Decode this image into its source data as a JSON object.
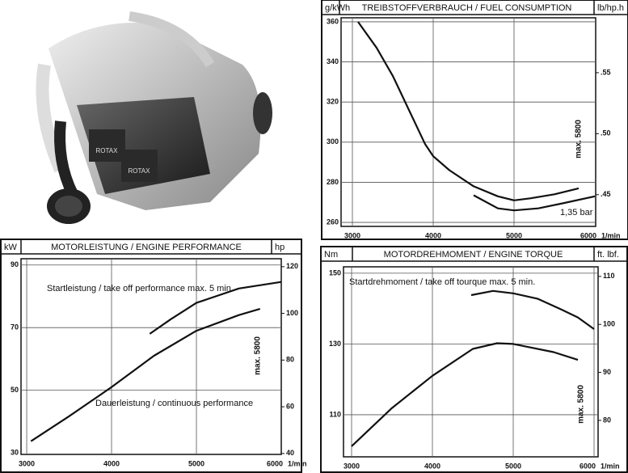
{
  "photo": {
    "labels": [
      "ROTAX",
      "ROTAX"
    ]
  },
  "chart_data": [
    {
      "type": "line",
      "title": "TREIBSTOFFVERBRAUCH / FUEL CONSUMPTION",
      "ylabel": "g/kWh",
      "y2label": "lb/hp.h",
      "xlabel": "1/min",
      "xlim": [
        2860,
        6010
      ],
      "xticks": [
        3000,
        4000,
        5000,
        6000
      ],
      "ylim": [
        258,
        362
      ],
      "yticks": [
        260,
        280,
        300,
        320,
        340,
        360
      ],
      "y2lim": [
        0.424,
        0.595
      ],
      "y2ticks": [
        {
          "value": 0.45,
          "label": ".45"
        },
        {
          "value": 0.5,
          "label": ".50"
        },
        {
          "value": 0.55,
          "label": ".55"
        }
      ],
      "grid": true,
      "annotations": [
        "max. 5800"
      ],
      "series": [
        {
          "color": "#111111",
          "x": [
            3070,
            3300,
            3500,
            3700,
            3900,
            4000,
            4200,
            4500,
            4800,
            5000,
            5200,
            5500,
            5800
          ],
          "values": [
            360,
            347,
            333,
            316,
            299,
            293,
            286,
            278,
            273,
            271,
            272,
            274,
            277
          ]
        },
        {
          "name": "1,35 bar",
          "color": "#111111",
          "x": [
            4500,
            4800,
            5000,
            5300,
            5600,
            6000
          ],
          "values": [
            273.5,
            267,
            266,
            267,
            269.5,
            273
          ]
        }
      ]
    },
    {
      "type": "line",
      "title": "MOTORLEISTUNG / ENGINE PERFORMANCE",
      "ylabel": "kW",
      "y2label": "hp",
      "xlabel": "1/min",
      "xlim": [
        2933,
        6000
      ],
      "xticks": [
        3000,
        4000,
        5000,
        6000
      ],
      "ylim": [
        29.5,
        92
      ],
      "yticks": [
        30,
        50,
        70,
        90
      ],
      "y2lim": [
        39.6,
        123.4
      ],
      "y2ticks": [
        40,
        60,
        80,
        100,
        120
      ],
      "grid": true,
      "annotations": [
        "max. 5800"
      ],
      "series": [
        {
          "name": "Startleistung / take off performance max. 5 min.",
          "color": "#111111",
          "x": [
            4450,
            4700,
            5000,
            5500,
            6000
          ],
          "values": [
            68,
            72.7,
            77.9,
            82.5,
            84.6
          ]
        },
        {
          "name": "Dauerleistung / continuous performance",
          "color": "#111111",
          "x": [
            3050,
            3500,
            4000,
            4500,
            5000,
            5500,
            5750
          ],
          "values": [
            33.7,
            41.7,
            51,
            61,
            69,
            74,
            76
          ]
        }
      ]
    },
    {
      "type": "line",
      "title": "MOTORDREHMOMENT / ENGINE TORQUE",
      "ylabel": "Nm",
      "y2label": "ft. lbf.",
      "xlabel": "1/min",
      "xlim": [
        2900,
        6050
      ],
      "xticks": [
        3000,
        4000,
        5000,
        6000
      ],
      "ylim": [
        98.1,
        151.8
      ],
      "yticks": [
        110,
        130,
        150
      ],
      "y2lim": [
        72.4,
        112
      ],
      "y2ticks": [
        80,
        90,
        100,
        110
      ],
      "grid": true,
      "annotations": [
        "max. 5800"
      ],
      "series": [
        {
          "name": "Startdrehmoment / take off tourque max. 5 min.",
          "color": "#111111",
          "x": [
            4480,
            4750,
            5000,
            5300,
            5600,
            5800,
            6000
          ],
          "values": [
            143.8,
            145,
            144.3,
            142.8,
            139.7,
            137.5,
            134.2
          ]
        },
        {
          "color": "#111111",
          "x": [
            3000,
            3500,
            4000,
            4500,
            4800,
            5000,
            5500,
            5800
          ],
          "values": [
            101.1,
            111.9,
            121,
            128.6,
            130.2,
            130,
            127.7,
            125.5
          ]
        }
      ]
    }
  ]
}
